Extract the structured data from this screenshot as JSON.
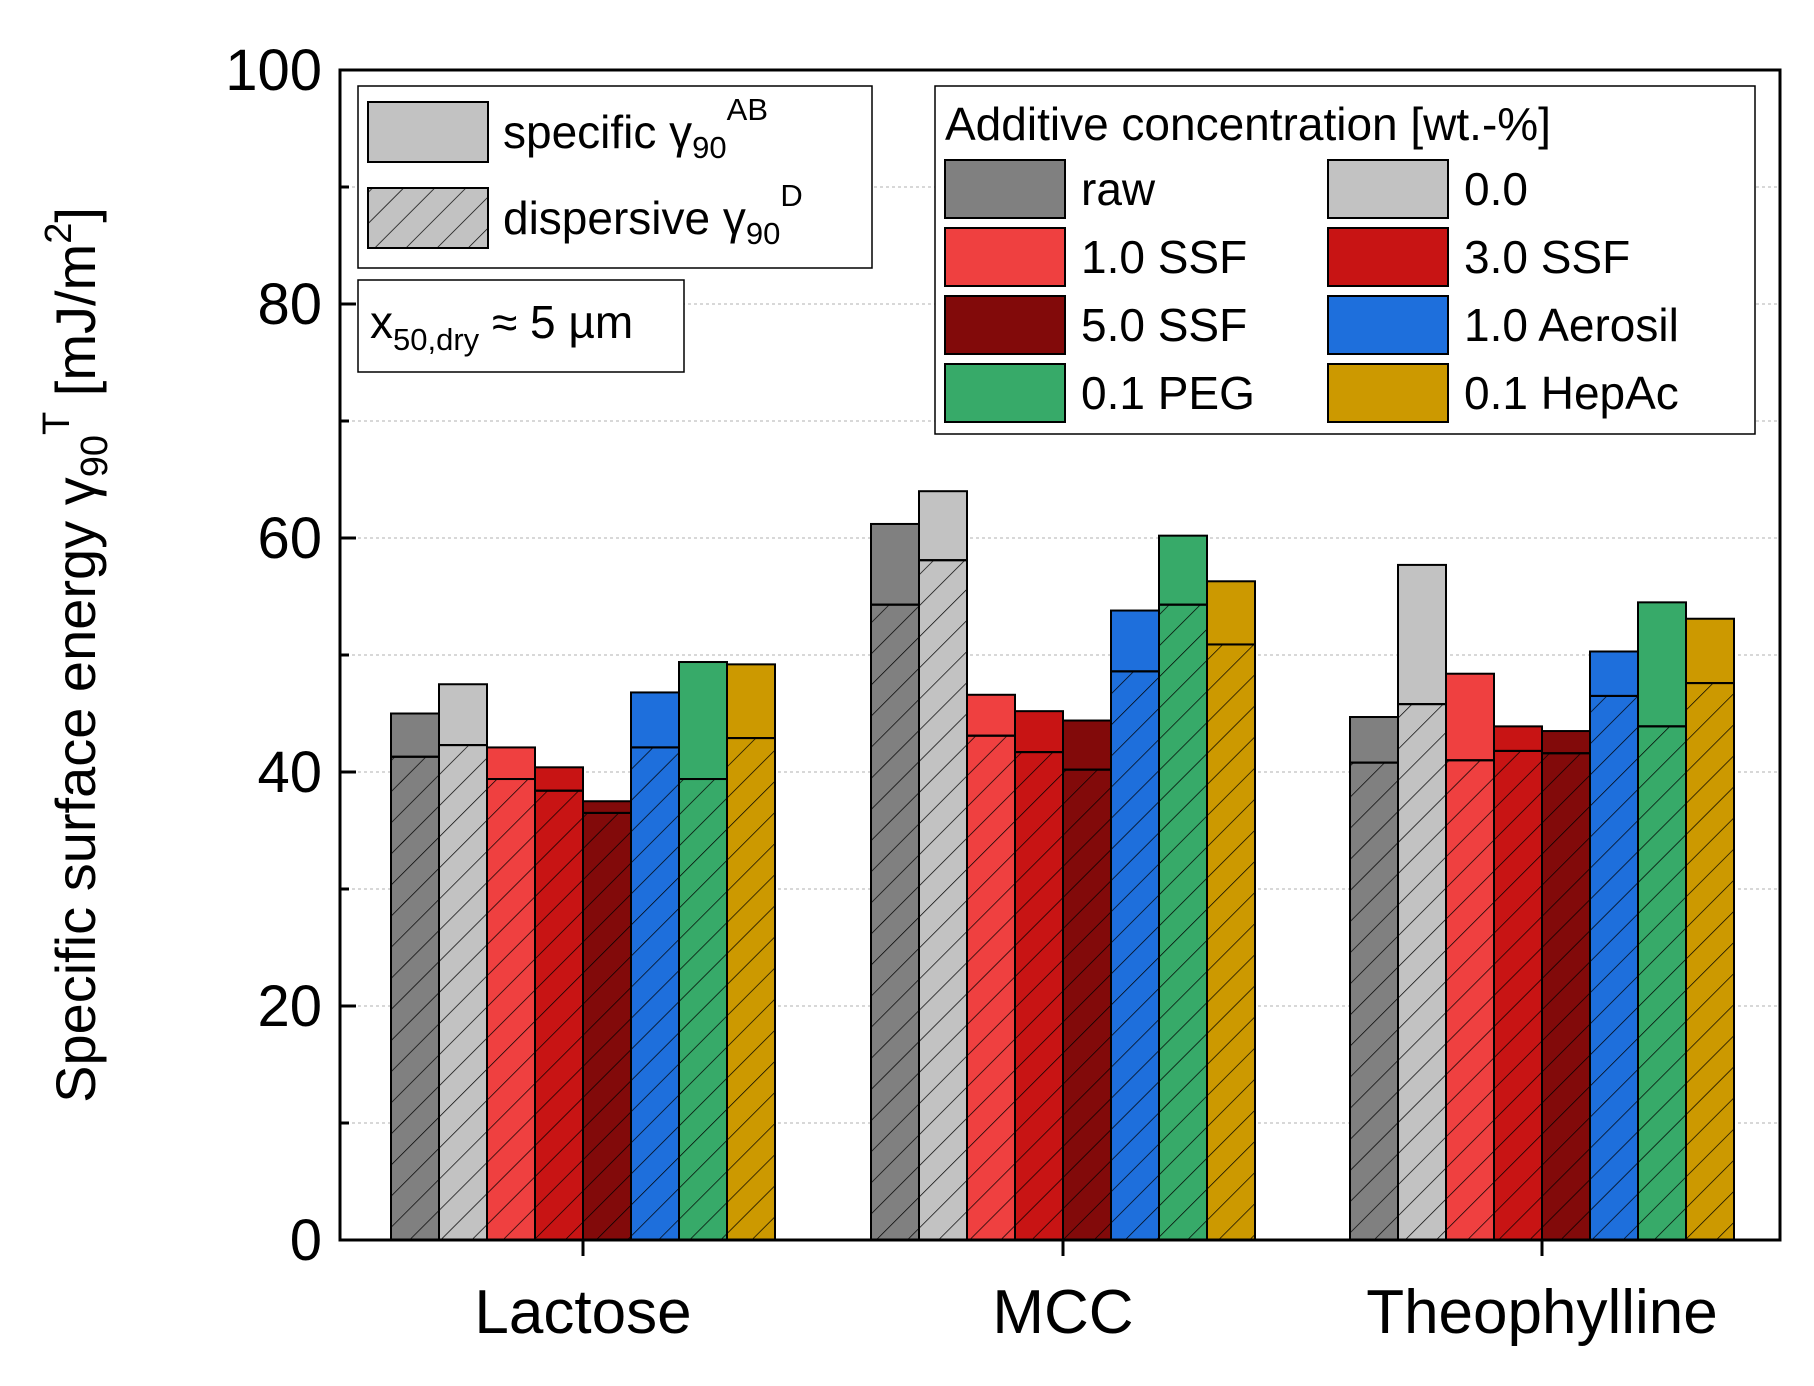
{
  "chart_data": {
    "type": "bar",
    "stacked_overlay": true,
    "categories": [
      "Lactose",
      "MCC",
      "Theophylline"
    ],
    "ylabel": {
      "main": "Specific surface energy ",
      "gamma": "γ",
      "sub": "90",
      "sup": "T",
      "unit": " [mJ/m",
      "unit_sup": "2",
      "unit_close": "]"
    },
    "ylim": [
      0,
      100
    ],
    "yticks": [
      0,
      20,
      40,
      60,
      80,
      100
    ],
    "grid": true,
    "series": [
      {
        "name": "raw",
        "color": "#808080",
        "total": [
          45.0,
          61.2,
          44.7
        ],
        "dispersive": [
          41.3,
          54.3,
          40.8
        ]
      },
      {
        "name": "0.0",
        "color": "#c2c2c2",
        "total": [
          47.5,
          64.0,
          57.7
        ],
        "dispersive": [
          42.3,
          58.1,
          45.8
        ]
      },
      {
        "name": "1.0 SSF",
        "color": "#ef4040",
        "total": [
          42.1,
          46.6,
          48.4
        ],
        "dispersive": [
          39.4,
          43.1,
          41.0
        ]
      },
      {
        "name": "3.0 SSF",
        "color": "#c81414",
        "total": [
          40.4,
          45.2,
          43.9
        ],
        "dispersive": [
          38.4,
          41.7,
          41.8
        ]
      },
      {
        "name": "5.0 SSF",
        "color": "#820a0a",
        "total": [
          37.5,
          44.4,
          43.5
        ],
        "dispersive": [
          36.5,
          40.2,
          41.6
        ]
      },
      {
        "name": "1.0 Aerosil",
        "color": "#1e6fdc",
        "total": [
          46.8,
          53.8,
          50.3
        ],
        "dispersive": [
          42.1,
          48.6,
          46.5
        ]
      },
      {
        "name": "0.1 PEG",
        "color": "#37aa69",
        "total": [
          49.4,
          60.2,
          54.5
        ],
        "dispersive": [
          39.4,
          54.3,
          43.9
        ]
      },
      {
        "name": "0.1 HepAc",
        "color": "#cc9900",
        "total": [
          49.2,
          56.3,
          53.1
        ],
        "dispersive": [
          42.9,
          50.9,
          47.6
        ]
      }
    ],
    "legend_title": "Additive concentration [wt.-%]",
    "legend_placement": "top-right",
    "legend_order": [
      "raw",
      "0.0",
      "1.0 SSF",
      "3.0 SSF",
      "5.0 SSF",
      "1.0 Aerosil",
      "0.1 PEG",
      "0.1 HepAc"
    ],
    "component_legend": [
      {
        "label": "specific ",
        "gamma": "γ",
        "sub": "90",
        "sup": "AB",
        "style": "solid"
      },
      {
        "label": "dispersive ",
        "gamma": "γ",
        "sub": "90",
        "sup": "D",
        "style": "hatched"
      }
    ],
    "annotation": {
      "main": "x",
      "sub": "50,dry",
      "rest": " ≈ 5 µm"
    }
  }
}
